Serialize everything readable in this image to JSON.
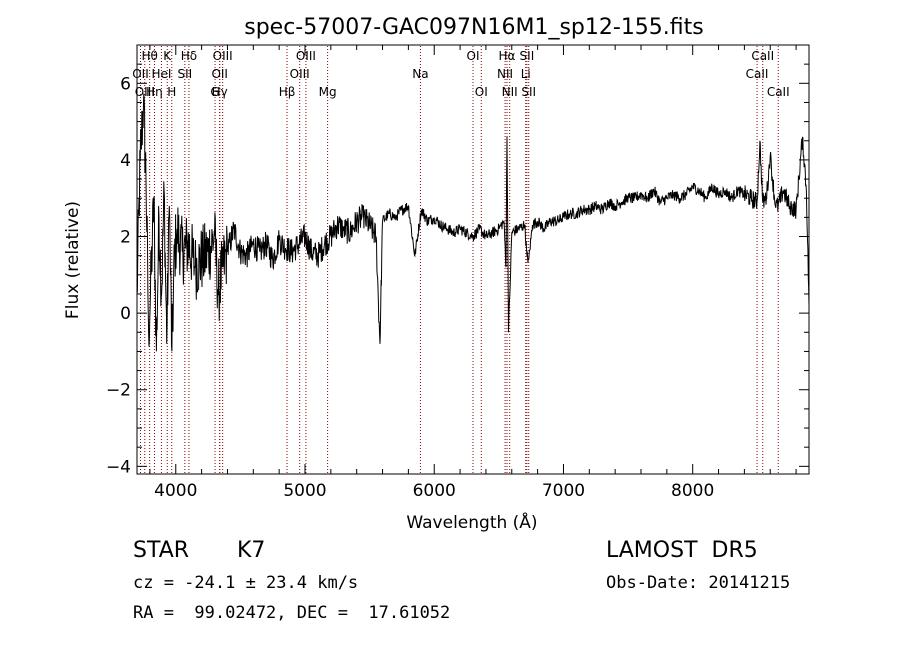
{
  "chart_data": {
    "type": "line",
    "title": "spec-57007-GAC097N16M1_sp12-155.fits",
    "xlabel": "Wavelength (Å)",
    "ylabel": "Flux (relative)",
    "xlim": [
      3700,
      8900
    ],
    "ylim": [
      -4.2,
      7.0
    ],
    "x_ticks": [
      4000,
      5000,
      6000,
      7000,
      8000
    ],
    "y_ticks": [
      -4,
      -2,
      0,
      2,
      4,
      6
    ],
    "grid": false,
    "series": [
      {
        "color": "#000000",
        "x": [
          3700,
          3725,
          3750,
          3770,
          3790,
          3810,
          3830,
          3850,
          3870,
          3890,
          3910,
          3930,
          3950,
          3970,
          3990,
          4010,
          4050,
          4100,
          4150,
          4200,
          4250,
          4300,
          4330,
          4360,
          4400,
          4450,
          4500,
          4550,
          4600,
          4650,
          4700,
          4750,
          4800,
          4850,
          4900,
          4950,
          5000,
          5050,
          5100,
          5150,
          5200,
          5250,
          5300,
          5350,
          5400,
          5450,
          5500,
          5550,
          5580,
          5600,
          5650,
          5700,
          5750,
          5800,
          5850,
          5900,
          5950,
          6000,
          6050,
          6100,
          6150,
          6200,
          6250,
          6300,
          6350,
          6400,
          6450,
          6500,
          6540,
          6555,
          6563,
          6575,
          6600,
          6650,
          6700,
          6717,
          6731,
          6760,
          6800,
          6850,
          6900,
          6950,
          7000,
          7050,
          7100,
          7150,
          7200,
          7250,
          7300,
          7350,
          7400,
          7450,
          7500,
          7550,
          7600,
          7650,
          7700,
          7750,
          7800,
          7850,
          7900,
          7950,
          8000,
          8050,
          8100,
          8150,
          8200,
          8250,
          8300,
          8350,
          8400,
          8450,
          8498,
          8520,
          8542,
          8570,
          8600,
          8640,
          8662,
          8700,
          8750,
          8800,
          8850,
          8880,
          8900
        ],
        "y": [
          0.5,
          4.0,
          5.5,
          3.5,
          -0.5,
          1.0,
          3.0,
          -1.0,
          2.5,
          0.5,
          3.2,
          -0.8,
          2.8,
          -1.0,
          1.5,
          2.2,
          1.6,
          1.8,
          1.2,
          1.4,
          1.6,
          2.0,
          0.5,
          1.2,
          1.6,
          2.2,
          1.6,
          1.5,
          1.8,
          1.6,
          1.8,
          1.4,
          1.9,
          1.7,
          1.6,
          1.8,
          2.0,
          1.6,
          1.5,
          1.8,
          2.0,
          2.3,
          2.2,
          2.1,
          2.4,
          2.5,
          2.3,
          2.0,
          -0.8,
          2.4,
          2.6,
          2.5,
          2.7,
          2.8,
          1.5,
          2.7,
          2.4,
          2.5,
          2.3,
          2.2,
          2.1,
          2.2,
          2.1,
          2.0,
          2.2,
          2.0,
          2.1,
          2.2,
          2.4,
          1.2,
          4.6,
          -0.5,
          2.1,
          2.2,
          2.3,
          1.5,
          1.4,
          2.3,
          2.4,
          2.2,
          2.4,
          2.4,
          2.5,
          2.6,
          2.6,
          2.7,
          2.7,
          2.8,
          2.7,
          2.9,
          2.8,
          2.9,
          3.0,
          3.0,
          3.1,
          3.0,
          3.2,
          2.9,
          3.0,
          3.1,
          3.0,
          3.1,
          3.3,
          3.2,
          3.0,
          3.3,
          3.1,
          3.2,
          3.0,
          3.2,
          3.1,
          3.0,
          2.9,
          4.5,
          2.9,
          3.0,
          4.1,
          2.8,
          2.8,
          3.2,
          2.8,
          2.7,
          4.6,
          3.2,
          0.2
        ]
      }
    ],
    "line_labels": [
      {
        "text": "Hθ",
        "x": 3798,
        "row": 1,
        "lines": [
          3798
        ]
      },
      {
        "text": "K",
        "x": 3934,
        "row": 1,
        "lines": [
          3934
        ]
      },
      {
        "text": "Hδ",
        "x": 4102,
        "row": 1,
        "lines": [
          4102
        ]
      },
      {
        "text": "OII",
        "x": 3727,
        "row": 2,
        "lines": [
          3727
        ]
      },
      {
        "text": "HeI",
        "x": 3889,
        "row": 2,
        "lines": [
          3889
        ]
      },
      {
        "text": "SII",
        "x": 4070,
        "row": 2,
        "lines": [
          4070
        ]
      },
      {
        "text": "OIII",
        "x": 3760,
        "row": 3,
        "lines": [
          3760
        ]
      },
      {
        "text": "Hη",
        "x": 3835,
        "row": 3,
        "lines": [
          3835
        ]
      },
      {
        "text": "H",
        "x": 3969,
        "row": 3,
        "lines": [
          3969
        ]
      },
      {
        "text": "OIII",
        "x": 4363,
        "row": 1,
        "lines": [
          4363
        ]
      },
      {
        "text": "OII",
        "x": 4340,
        "row": 2,
        "lines": [
          4340
        ]
      },
      {
        "text": "Hγ",
        "x": 4340,
        "row": 3,
        "lines": [
          4340
        ]
      },
      {
        "text": "G",
        "x": 4304,
        "row": 4,
        "lines": [
          4304
        ]
      },
      {
        "text": "OIII",
        "x": 5007,
        "row": 1,
        "lines": [
          5007
        ]
      },
      {
        "text": "OIII",
        "x": 4959,
        "row": 2,
        "lines": [
          4959
        ]
      },
      {
        "text": "Hβ",
        "x": 4861,
        "row": 3,
        "lines": [
          4861
        ]
      },
      {
        "text": "Mg",
        "x": 5175,
        "row": 3,
        "lines": [
          5175
        ]
      },
      {
        "text": "Na",
        "x": 5893,
        "row": 2,
        "lines": [
          5893
        ]
      },
      {
        "text": "OI",
        "x": 6300,
        "row": 1,
        "lines": [
          6300
        ]
      },
      {
        "text": "OI",
        "x": 6364,
        "row": 3,
        "lines": [
          6364
        ]
      },
      {
        "text": "Hα",
        "x": 6563,
        "row": 1,
        "lines": [
          6563
        ]
      },
      {
        "text": "NII",
        "x": 6548,
        "row": 2,
        "lines": [
          6548
        ]
      },
      {
        "text": "NII",
        "x": 6584,
        "row": 3,
        "lines": [
          6584
        ]
      },
      {
        "text": "SII",
        "x": 6717,
        "row": 1,
        "lines": [
          6717
        ]
      },
      {
        "text": "Li",
        "x": 6708,
        "row": 2,
        "lines": [
          6708
        ]
      },
      {
        "text": "SII",
        "x": 6731,
        "row": 3,
        "lines": [
          6731
        ]
      },
      {
        "text": "CaII",
        "x": 8542,
        "row": 1,
        "lines": [
          8542
        ]
      },
      {
        "text": "CaII",
        "x": 8498,
        "row": 2,
        "lines": [
          8498
        ]
      },
      {
        "text": "CaII",
        "x": 8662,
        "row": 3,
        "lines": [
          8662
        ]
      }
    ]
  },
  "info": {
    "class": "STAR",
    "subclass": "K7",
    "survey": "LAMOST  DR5",
    "redshift_text": "cz = -24.1 ± 23.4 km/s",
    "obs_date": "Obs-Date: 20141215",
    "coords": "RA =  99.02472, DEC =  17.61052"
  },
  "colors": {
    "spectrum": "#000000",
    "line_markers": "#8b0000",
    "axes": "#000000",
    "background": "#ffffff"
  }
}
